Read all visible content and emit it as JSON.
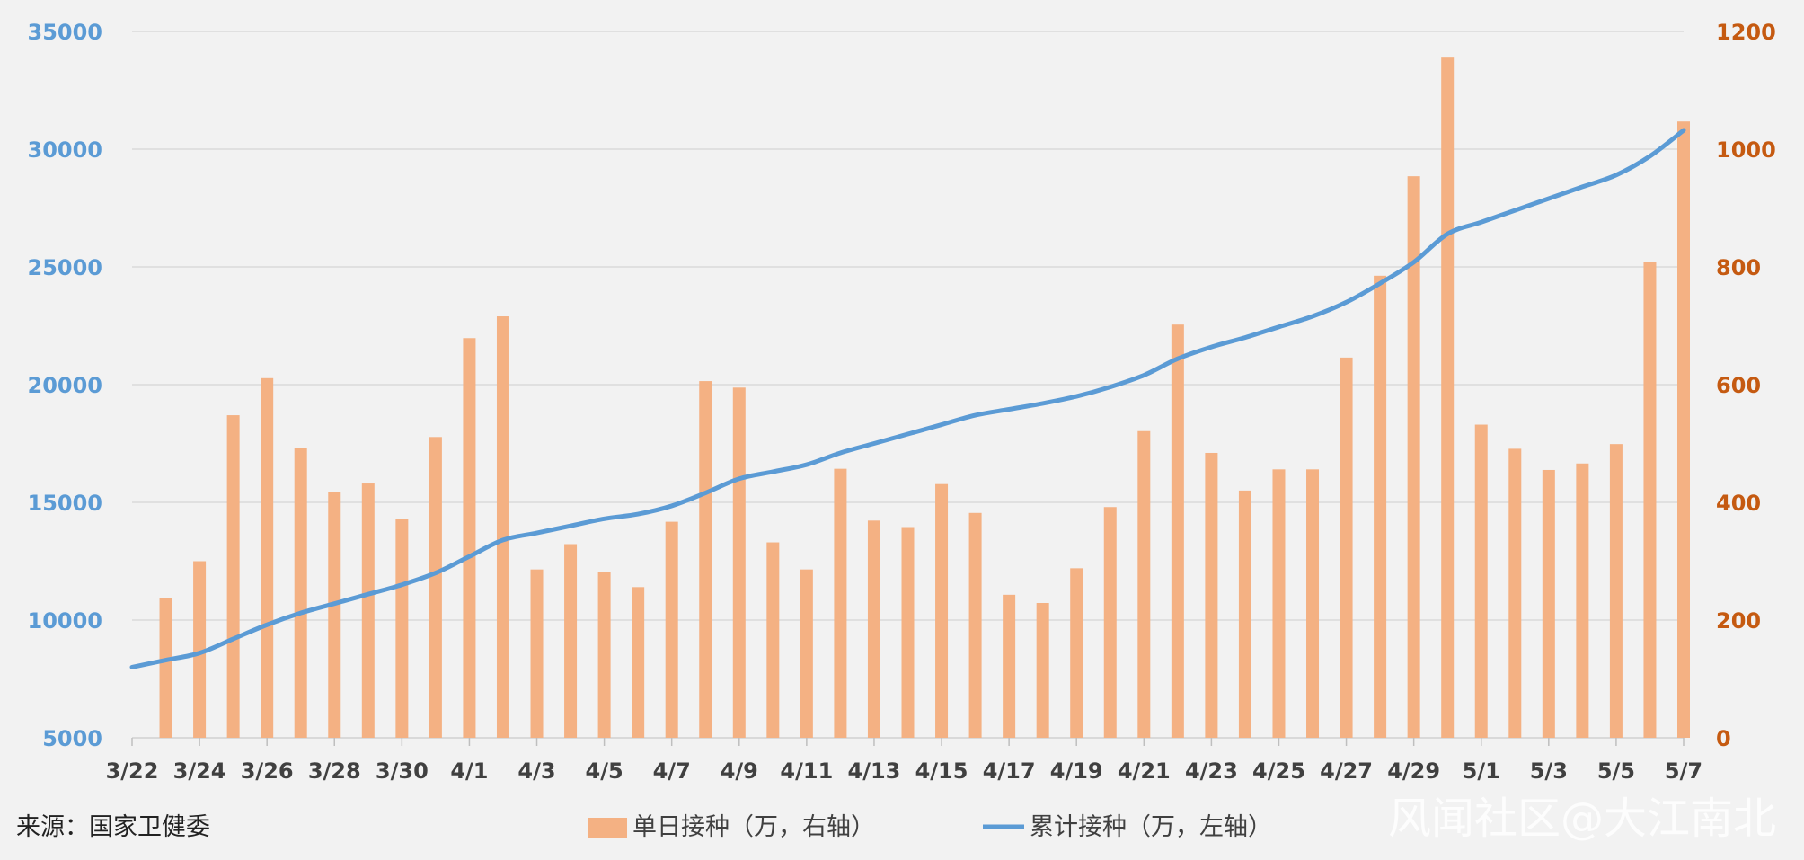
{
  "source_note": "来源：国家卫健委",
  "watermark": "风闻社区@大江南北",
  "colors": {
    "bar": "#f4b183",
    "line": "#5b9bd5",
    "left_axis": "#5b9bd5",
    "right_axis": "#c55a11",
    "grid": "#d9d9d9"
  },
  "chart_data": {
    "type": "bar",
    "x_tick_labels": [
      "3/22",
      "3/24",
      "3/26",
      "3/28",
      "3/30",
      "4/1",
      "4/3",
      "4/5",
      "4/7",
      "4/9",
      "4/11",
      "4/13",
      "4/15",
      "4/17",
      "4/19",
      "4/21",
      "4/23",
      "4/25",
      "4/27",
      "4/29",
      "5/1",
      "5/3",
      "5/5",
      "5/7"
    ],
    "left_axis": {
      "ticks": [
        "5000",
        "10000",
        "15000",
        "20000",
        "25000",
        "30000",
        "35000"
      ],
      "ylim": [
        5000,
        35000
      ]
    },
    "right_axis": {
      "ticks": [
        "0",
        "200",
        "400",
        "600",
        "800",
        "1000",
        "1200"
      ],
      "ylim": [
        0,
        1200
      ]
    },
    "grid": true,
    "legend_position": "bottom",
    "x_range": [
      "3/22",
      "5/7"
    ],
    "series": [
      {
        "name": "单日接种（万，右轴）",
        "type": "bar",
        "axis": "right",
        "points": [
          {
            "x": "3/23",
            "y": 238
          },
          {
            "x": "3/24",
            "y": 300
          },
          {
            "x": "3/25",
            "y": 548
          },
          {
            "x": "3/26",
            "y": 611
          },
          {
            "x": "3/27",
            "y": 493
          },
          {
            "x": "3/28",
            "y": 418
          },
          {
            "x": "3/29",
            "y": 432
          },
          {
            "x": "3/30",
            "y": 371
          },
          {
            "x": "3/31",
            "y": 511
          },
          {
            "x": "4/1",
            "y": 679
          },
          {
            "x": "4/2",
            "y": 716
          },
          {
            "x": "4/3",
            "y": 286
          },
          {
            "x": "4/4",
            "y": 329
          },
          {
            "x": "4/5",
            "y": 281
          },
          {
            "x": "4/6",
            "y": 256
          },
          {
            "x": "4/7",
            "y": 367
          },
          {
            "x": "4/8",
            "y": 606
          },
          {
            "x": "4/9",
            "y": 595
          },
          {
            "x": "4/10",
            "y": 332
          },
          {
            "x": "4/11",
            "y": 286
          },
          {
            "x": "4/12",
            "y": 457
          },
          {
            "x": "4/13",
            "y": 369
          },
          {
            "x": "4/14",
            "y": 358
          },
          {
            "x": "4/15",
            "y": 431
          },
          {
            "x": "4/16",
            "y": 382
          },
          {
            "x": "4/17",
            "y": 243
          },
          {
            "x": "4/18",
            "y": 229
          },
          {
            "x": "4/19",
            "y": 288
          },
          {
            "x": "4/20",
            "y": 392
          },
          {
            "x": "4/21",
            "y": 521
          },
          {
            "x": "4/22",
            "y": 702
          },
          {
            "x": "4/23",
            "y": 484
          },
          {
            "x": "4/24",
            "y": 420
          },
          {
            "x": "4/25",
            "y": 456
          },
          {
            "x": "4/26",
            "y": 456
          },
          {
            "x": "4/27",
            "y": 646
          },
          {
            "x": "4/28",
            "y": 785
          },
          {
            "x": "4/29",
            "y": 954
          },
          {
            "x": "4/30",
            "y": 1157
          },
          {
            "x": "5/1",
            "y": 532
          },
          {
            "x": "5/2",
            "y": 491
          },
          {
            "x": "5/3",
            "y": 455
          },
          {
            "x": "5/4",
            "y": 466
          },
          {
            "x": "5/5",
            "y": 499
          },
          {
            "x": "5/6",
            "y": 809
          },
          {
            "x": "5/7",
            "y": 1047
          }
        ]
      },
      {
        "name": "累计接种（万，左轴）",
        "type": "line",
        "axis": "left",
        "points": [
          {
            "x": "3/22",
            "y": 8000
          },
          {
            "x": "3/23",
            "y": 8300
          },
          {
            "x": "3/24",
            "y": 8600
          },
          {
            "x": "3/25",
            "y": 9200
          },
          {
            "x": "3/26",
            "y": 9800
          },
          {
            "x": "3/27",
            "y": 10300
          },
          {
            "x": "3/28",
            "y": 10700
          },
          {
            "x": "3/29",
            "y": 11100
          },
          {
            "x": "3/30",
            "y": 11500
          },
          {
            "x": "3/31",
            "y": 12000
          },
          {
            "x": "4/1",
            "y": 12700
          },
          {
            "x": "4/2",
            "y": 13400
          },
          {
            "x": "4/3",
            "y": 13700
          },
          {
            "x": "4/4",
            "y": 14000
          },
          {
            "x": "4/5",
            "y": 14300
          },
          {
            "x": "4/6",
            "y": 14500
          },
          {
            "x": "4/7",
            "y": 14850
          },
          {
            "x": "4/8",
            "y": 15400
          },
          {
            "x": "4/9",
            "y": 16000
          },
          {
            "x": "4/10",
            "y": 16300
          },
          {
            "x": "4/11",
            "y": 16600
          },
          {
            "x": "4/12",
            "y": 17100
          },
          {
            "x": "4/13",
            "y": 17500
          },
          {
            "x": "4/14",
            "y": 17900
          },
          {
            "x": "4/15",
            "y": 18300
          },
          {
            "x": "4/16",
            "y": 18700
          },
          {
            "x": "4/17",
            "y": 18950
          },
          {
            "x": "4/18",
            "y": 19200
          },
          {
            "x": "4/19",
            "y": 19500
          },
          {
            "x": "4/20",
            "y": 19900
          },
          {
            "x": "4/21",
            "y": 20400
          },
          {
            "x": "4/22",
            "y": 21100
          },
          {
            "x": "4/23",
            "y": 21600
          },
          {
            "x": "4/24",
            "y": 22000
          },
          {
            "x": "4/25",
            "y": 22450
          },
          {
            "x": "4/26",
            "y": 22900
          },
          {
            "x": "4/27",
            "y": 23500
          },
          {
            "x": "4/28",
            "y": 24300
          },
          {
            "x": "4/29",
            "y": 25200
          },
          {
            "x": "4/30",
            "y": 26400
          },
          {
            "x": "5/1",
            "y": 26900
          },
          {
            "x": "5/2",
            "y": 27400
          },
          {
            "x": "5/3",
            "y": 27900
          },
          {
            "x": "5/4",
            "y": 28400
          },
          {
            "x": "5/5",
            "y": 28900
          },
          {
            "x": "5/6",
            "y": 29700
          },
          {
            "x": "5/7",
            "y": 30800
          }
        ]
      }
    ]
  }
}
